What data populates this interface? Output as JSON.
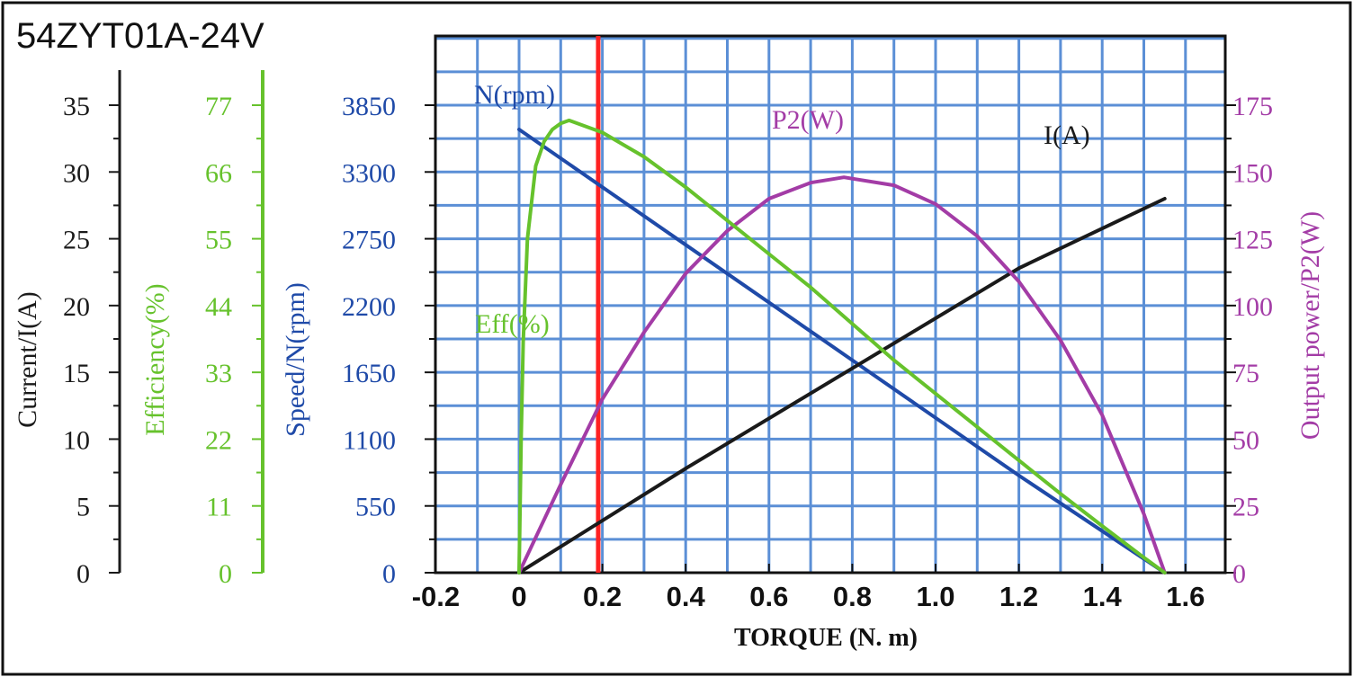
{
  "title": "54ZYT01A-24V",
  "colors": {
    "current": "#1a1a1a",
    "efficiency": "#66c22c",
    "speed": "#1f4aa8",
    "power": "#a33ca6",
    "marker": "#ff2222",
    "grid": "#5b8fd6",
    "background": "#ffffff"
  },
  "chart_data": {
    "type": "line",
    "xlabel": "TORQUE (N. m)",
    "xlim": [
      -0.2,
      1.6
    ],
    "x_ticks": [
      "-0.2",
      "0",
      "0.2",
      "0.4",
      "0.6",
      "0.8",
      "1.0",
      "1.2",
      "1.4",
      "1.6"
    ],
    "grid": true,
    "marker_line_x": 0.19,
    "axes": {
      "current": {
        "label": "Current/I(A)",
        "ticks": [
          "0",
          "5",
          "10",
          "15",
          "20",
          "25",
          "30",
          "35"
        ],
        "ylim": [
          0,
          35
        ]
      },
      "efficiency": {
        "label": "Efficiency(%)",
        "ticks": [
          "0",
          "11",
          "22",
          "33",
          "44",
          "55",
          "66",
          "77"
        ],
        "ylim": [
          0,
          77
        ]
      },
      "speed": {
        "label": "Speed/N(rpm)",
        "ticks": [
          "0",
          "550",
          "1100",
          "1650",
          "2200",
          "2750",
          "3300",
          "3850"
        ],
        "ylim": [
          0,
          3850
        ]
      },
      "power": {
        "label": "Output power/P2(W)",
        "ticks": [
          "0",
          "25",
          "50",
          "75",
          "100",
          "125",
          "150",
          "175"
        ],
        "ylim": [
          0,
          175
        ]
      }
    },
    "series": [
      {
        "name": "N(rpm)",
        "axis": "speed",
        "x": [
          0,
          0.4,
          0.8,
          1.2,
          1.55
        ],
        "y": [
          3650,
          2700,
          1750,
          800,
          0
        ]
      },
      {
        "name": "I(A)",
        "axis": "current",
        "x": [
          0,
          0.4,
          0.8,
          1.2,
          1.55
        ],
        "y": [
          0,
          7.8,
          15.3,
          22.8,
          28.0
        ]
      },
      {
        "name": "P2(W)",
        "axis": "power",
        "x": [
          0,
          0.1,
          0.2,
          0.3,
          0.4,
          0.5,
          0.6,
          0.7,
          0.78,
          0.9,
          1.0,
          1.1,
          1.2,
          1.3,
          1.4,
          1.5,
          1.55
        ],
        "y": [
          0,
          33,
          65,
          90,
          112,
          128,
          140,
          146,
          148,
          145,
          138,
          126,
          109,
          87,
          59,
          22,
          0
        ]
      },
      {
        "name": "Eff(%)",
        "axis": "efficiency",
        "x": [
          0,
          0.005,
          0.01,
          0.02,
          0.04,
          0.06,
          0.08,
          0.1,
          0.12,
          0.2,
          0.3,
          0.4,
          0.5,
          0.6,
          0.7,
          0.8,
          0.9,
          1.0,
          1.1,
          1.2,
          1.3,
          1.4,
          1.5,
          1.55
        ],
        "y": [
          0,
          22,
          38,
          55,
          67,
          71,
          73,
          74,
          74.5,
          72.5,
          68.5,
          63.5,
          58,
          52.5,
          47,
          41,
          35,
          29.5,
          24,
          18.5,
          13,
          7.7,
          2.5,
          0
        ]
      }
    ]
  }
}
